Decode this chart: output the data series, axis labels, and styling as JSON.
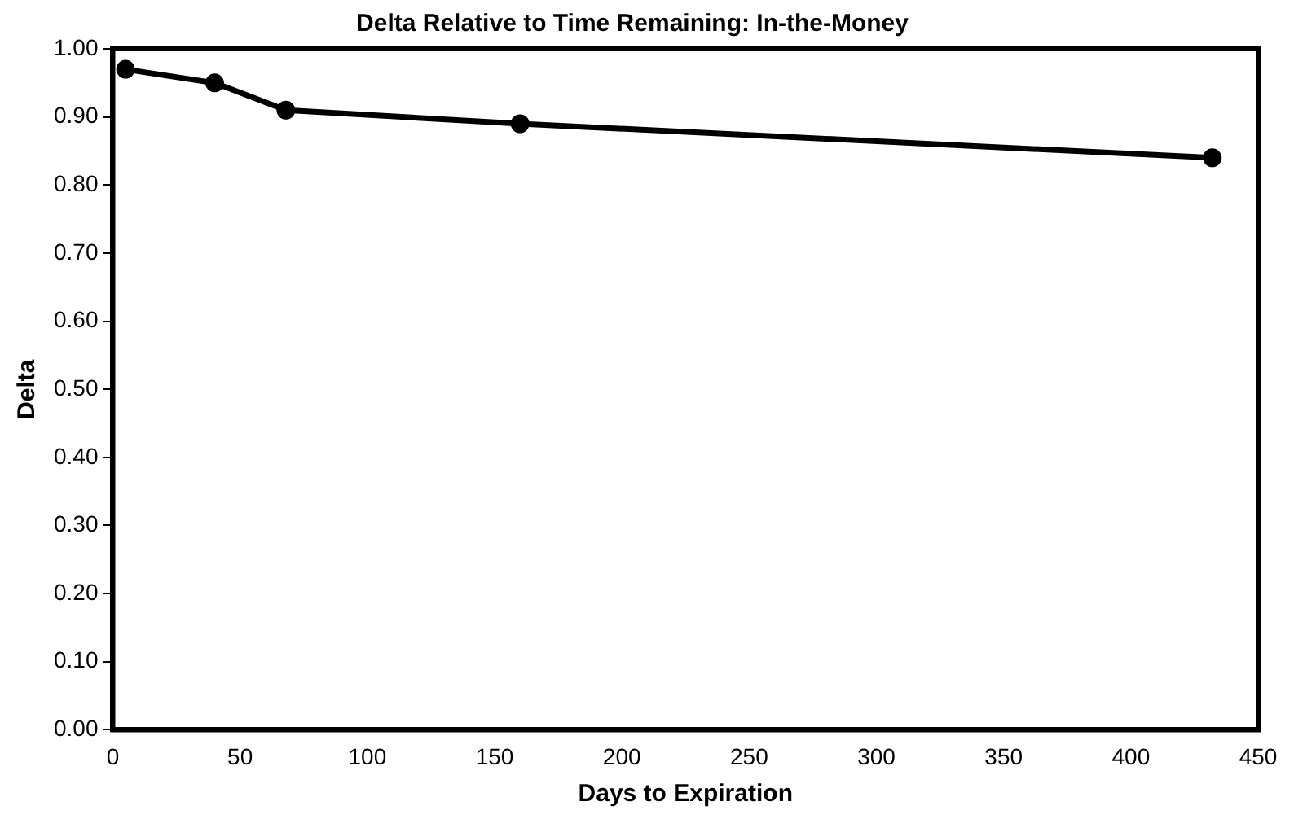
{
  "chart_data": {
    "type": "line",
    "title": "Delta Relative to Time Remaining: In-the-Money",
    "xlabel": "Days to Expiration",
    "ylabel": "Delta",
    "x": [
      5,
      40,
      68,
      160,
      432
    ],
    "series": [
      {
        "color": "#000000",
        "values": [
          0.97,
          0.95,
          0.91,
          0.89,
          0.84
        ]
      }
    ],
    "xlim": [
      0,
      450
    ],
    "xticks": [
      0,
      50,
      100,
      150,
      200,
      250,
      300,
      350,
      400,
      450
    ],
    "ylim": [
      0,
      1
    ],
    "yticks": [
      {
        "value": 0,
        "label": "0.00"
      },
      {
        "value": 0.1,
        "label": "0.10"
      },
      {
        "value": 0.2,
        "label": "0.20"
      },
      {
        "value": 0.3,
        "label": "0.30"
      },
      {
        "value": 0.4,
        "label": "0.40"
      },
      {
        "value": 0.5,
        "label": "0.50"
      },
      {
        "value": 0.6,
        "label": "0.60"
      },
      {
        "value": 0.7,
        "label": "0.70"
      },
      {
        "value": 0.8,
        "label": "0.80"
      },
      {
        "value": 0.9,
        "label": "0.90"
      },
      {
        "value": 1,
        "label": "1.00"
      }
    ],
    "grid": false,
    "legend": false,
    "marker": "circle",
    "line_style": "solid"
  }
}
